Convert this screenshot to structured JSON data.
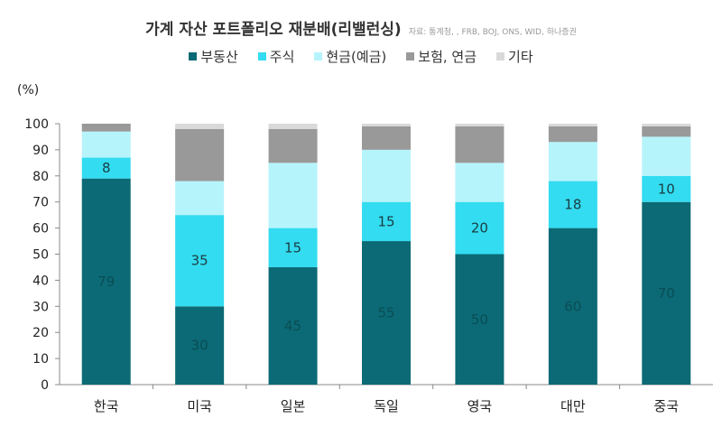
{
  "chart_data": {
    "type": "bar",
    "stacked": true,
    "title": "가계 자산 포트폴리오 재분배(리밸런싱)",
    "source": "자료: 통계청, , FRB, BOJ, ONS, WID, 하나증권",
    "ylabel": "(%)",
    "ylim": [
      0,
      100
    ],
    "yticks": [
      0,
      10,
      20,
      30,
      40,
      50,
      60,
      70,
      80,
      90,
      100
    ],
    "legend_position": "top",
    "grid": false,
    "categories": [
      "한국",
      "미국",
      "일본",
      "독일",
      "영국",
      "대만",
      "중국"
    ],
    "series": [
      {
        "name": "부동산",
        "color": "#0b6a75",
        "values": [
          79,
          30,
          45,
          55,
          50,
          60,
          70
        ],
        "label_color": "#0a4d55",
        "labels": [
          "79",
          "30",
          "45",
          "55",
          "50",
          "60",
          "70"
        ]
      },
      {
        "name": "주식",
        "color": "#33dcf0",
        "values": [
          8,
          35,
          15,
          15,
          20,
          18,
          10
        ],
        "label_color": "#1a3d44",
        "labels": [
          "8",
          "35",
          "15",
          "15",
          "20",
          "18",
          "10"
        ]
      },
      {
        "name": "현금(예금)",
        "color": "#b6f4fb",
        "values": [
          10,
          13,
          25,
          20,
          15,
          15,
          15
        ]
      },
      {
        "name": "보험, 연금",
        "color": "#999999",
        "values": [
          3,
          20,
          13,
          9,
          14,
          6,
          4
        ]
      },
      {
        "name": "기타",
        "color": "#d9d9d9",
        "values": [
          0,
          2,
          2,
          1,
          1,
          1,
          1
        ]
      }
    ]
  }
}
